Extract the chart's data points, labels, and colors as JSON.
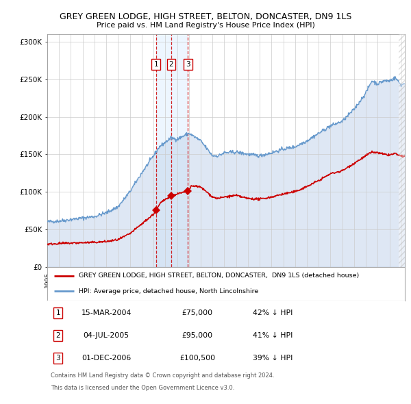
{
  "title": "GREY GREEN LODGE, HIGH STREET, BELTON, DONCASTER, DN9 1LS",
  "subtitle": "Price paid vs. HM Land Registry's House Price Index (HPI)",
  "background_color": "#e8f0f8",
  "plot_bg_color": "#ffffff",
  "hpi_color": "#6699cc",
  "hpi_fill_color": "#c8d8ee",
  "property_color": "#cc0000",
  "grid_color": "#cccccc",
  "ylim": [
    0,
    310000
  ],
  "yticks": [
    0,
    50000,
    100000,
    150000,
    200000,
    250000,
    300000
  ],
  "ytick_labels": [
    "£0",
    "£50K",
    "£100K",
    "£150K",
    "£200K",
    "£250K",
    "£300K"
  ],
  "transactions": [
    {
      "num": 1,
      "date": "15-MAR-2004",
      "price": 75000,
      "hpi_pct": "42%",
      "x_year": 2004.21
    },
    {
      "num": 2,
      "date": "04-JUL-2005",
      "price": 95000,
      "hpi_pct": "41%",
      "x_year": 2005.5
    },
    {
      "num": 3,
      "date": "01-DEC-2006",
      "price": 100500,
      "hpi_pct": "39%",
      "x_year": 2006.92
    }
  ],
  "legend_line1": "GREY GREEN LODGE, HIGH STREET, BELTON, DONCASTER,  DN9 1LS (detached house)",
  "legend_line2": "HPI: Average price, detached house, North Lincolnshire",
  "footer1": "Contains HM Land Registry data © Crown copyright and database right 2024.",
  "footer2": "This data is licensed under the Open Government Licence v3.0.",
  "xmin": 1995.0,
  "xmax": 2025.3
}
